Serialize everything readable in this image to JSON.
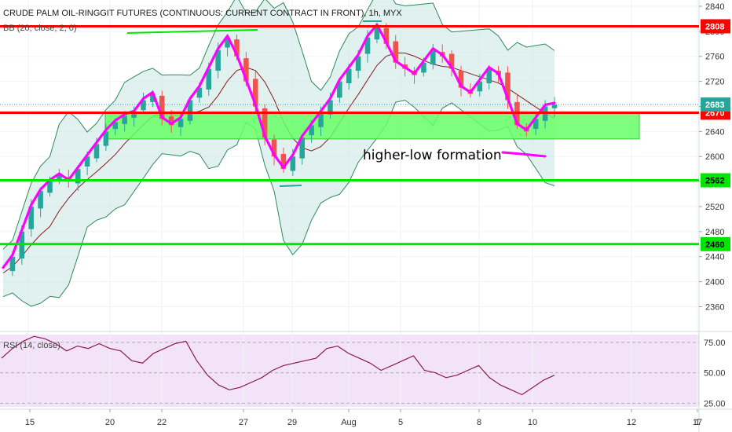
{
  "chart_data": {
    "type": "candlestick",
    "title": "CRUDE PALM OIL-RINGGIT FUTURES (CONTINUOUS: CURRENT CONTRACT IN FRONT), 1h, MYX",
    "indicators": {
      "bollinger_legend": "BB (20, close, 2, 0)",
      "rsi_legend": "RSI (14, close)"
    },
    "price_axis": {
      "ticks": [
        2360,
        2400,
        2440,
        2480,
        2520,
        2560,
        2600,
        2640,
        2680,
        2720,
        2760,
        2800,
        2840
      ],
      "range": [
        2328,
        2850
      ]
    },
    "rsi_axis": {
      "ticks": [
        "25.00",
        "50.00",
        "75.00"
      ],
      "range": [
        22,
        84
      ]
    },
    "time_axis": {
      "labels": [
        "15",
        "20",
        "22",
        "27",
        "29",
        "Aug",
        "5",
        "8",
        "10",
        "12",
        "17",
        "1"
      ]
    },
    "horizontal_lines": [
      {
        "value": 2808,
        "label": "2808",
        "color": "#ff0000"
      },
      {
        "value": 2670,
        "label": "2670",
        "color": "#ff0000"
      },
      {
        "value": 2562,
        "label": "2562",
        "color": "#00e600"
      },
      {
        "value": 2460,
        "label": "2460",
        "color": "#00e600"
      }
    ],
    "last_price": {
      "value": 2683,
      "label": "2683"
    },
    "support_zone": {
      "from": 2628,
      "to": 2670,
      "color": "#66ff66"
    },
    "annotation": "higher-low formation",
    "price_path": [
      2420,
      2440,
      2480,
      2520,
      2545,
      2560,
      2570,
      2560,
      2580,
      2600,
      2620,
      2640,
      2655,
      2665,
      2670,
      2690,
      2700,
      2660,
      2650,
      2660,
      2690,
      2710,
      2740,
      2770,
      2790,
      2760,
      2720,
      2680,
      2630,
      2600,
      2580,
      2600,
      2630,
      2650,
      2670,
      2690,
      2720,
      2740,
      2760,
      2790,
      2808,
      2780,
      2750,
      2740,
      2730,
      2750,
      2770,
      2760,
      2740,
      2710,
      2700,
      2720,
      2740,
      2730,
      2690,
      2650,
      2640,
      2660,
      2680,
      2683
    ],
    "rsi_values": [
      62,
      70,
      76,
      80,
      78,
      74,
      68,
      72,
      70,
      74,
      70,
      68,
      60,
      58,
      66,
      70,
      74,
      76,
      60,
      48,
      40,
      36,
      38,
      42,
      46,
      52,
      56,
      58,
      60,
      62,
      70,
      72,
      66,
      62,
      58,
      52,
      56,
      60,
      64,
      52,
      50,
      46,
      48,
      52,
      56,
      46,
      40,
      36,
      32,
      38,
      44,
      48
    ]
  },
  "colors": {
    "up": "#26a69a",
    "down": "#ef5350",
    "bb_fill": "#cde7e4",
    "bb_band": "#2e8b57",
    "bb_basis": "#8b1a1a",
    "highlight": "#ff00ff",
    "rsi_fill": "#f3e3f9",
    "rsi_line": "#8b1a4a"
  }
}
